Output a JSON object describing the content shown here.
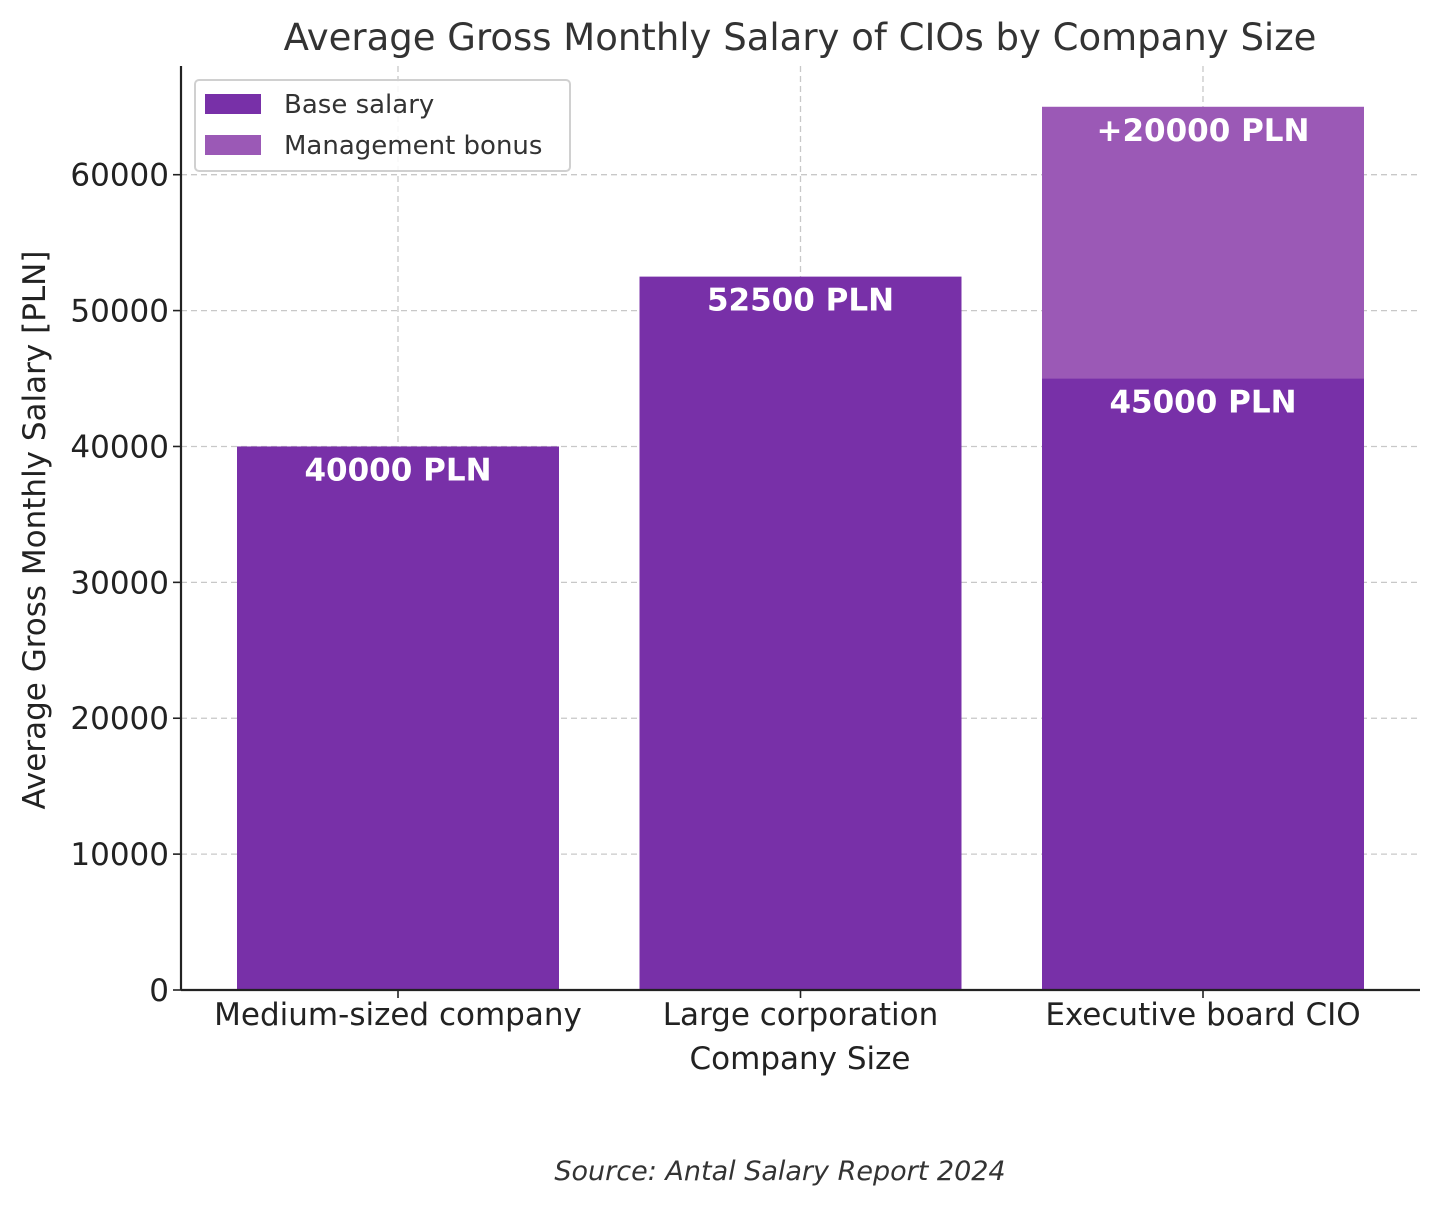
{
  "chart_data": {
    "type": "bar",
    "stacked": true,
    "title": "Average Gross Monthly Salary of CIOs by Company Size",
    "xlabel": "Company Size",
    "ylabel": "Average Gross Monthly Salary [PLN]",
    "categories": [
      "Medium-sized company",
      "Large corporation",
      "Executive board CIO"
    ],
    "series": [
      {
        "name": "Base salary",
        "values": [
          40000,
          52500,
          45000
        ],
        "color": "#7830a8",
        "labels": [
          "40000 PLN",
          "52500 PLN",
          "45000 PLN"
        ]
      },
      {
        "name": "Management bonus",
        "values": [
          0,
          0,
          20000
        ],
        "color": "#9b59b6",
        "labels": [
          "",
          "",
          "+20000 PLN"
        ]
      }
    ],
    "ylim": [
      0,
      68000
    ],
    "yticks": [
      0,
      10000,
      20000,
      30000,
      40000,
      50000,
      60000
    ],
    "grid": true,
    "legend": "top-left",
    "source": "Source: Antal Salary Report 2024"
  }
}
